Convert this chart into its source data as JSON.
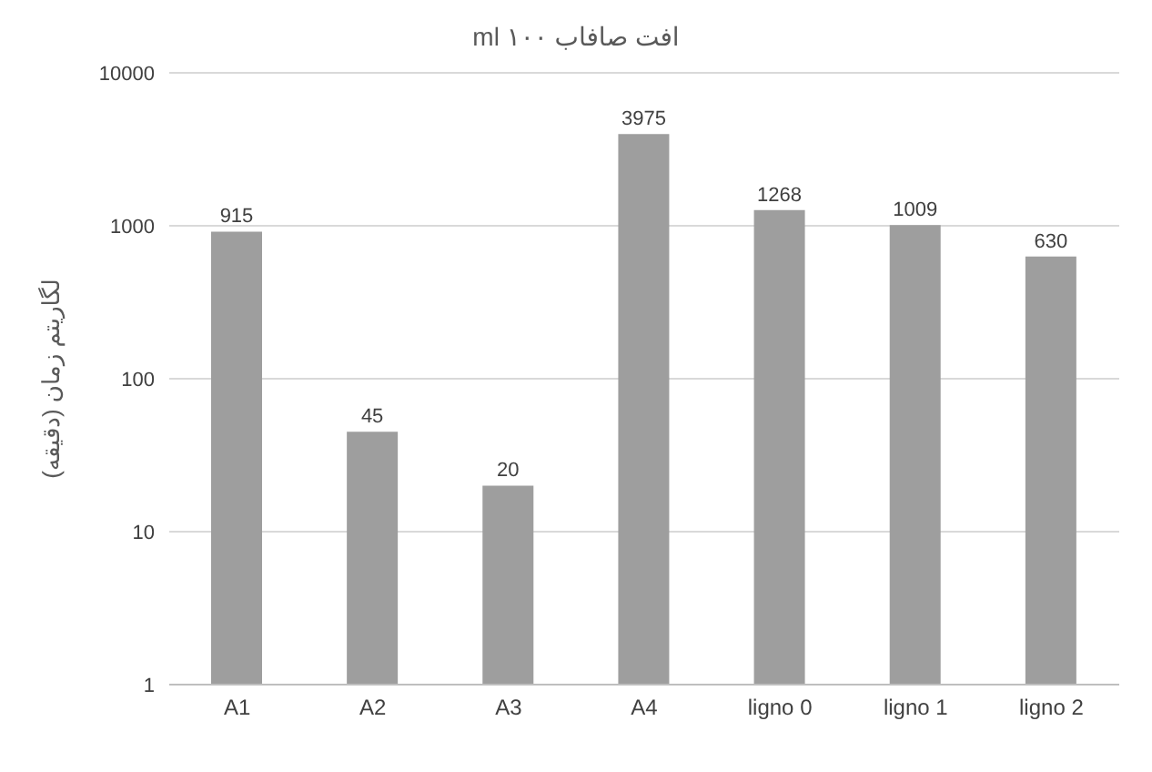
{
  "chart_data": {
    "type": "bar",
    "title": "افت صافاب ml ۱۰۰",
    "ylabel": "لگاریتم زمان (دقیقه)",
    "categories": [
      "A1",
      "A2",
      "A3",
      "A4",
      "ligno 0",
      "ligno 1",
      "ligno 2"
    ],
    "values": [
      915,
      45,
      20,
      3975,
      1268,
      1009,
      630
    ],
    "color": "#9e9e9e",
    "log": "y",
    "ylim": [
      1,
      10000
    ],
    "yticks": [
      1,
      10,
      100,
      1000,
      10000
    ],
    "grid": "y",
    "data_labels": true
  }
}
